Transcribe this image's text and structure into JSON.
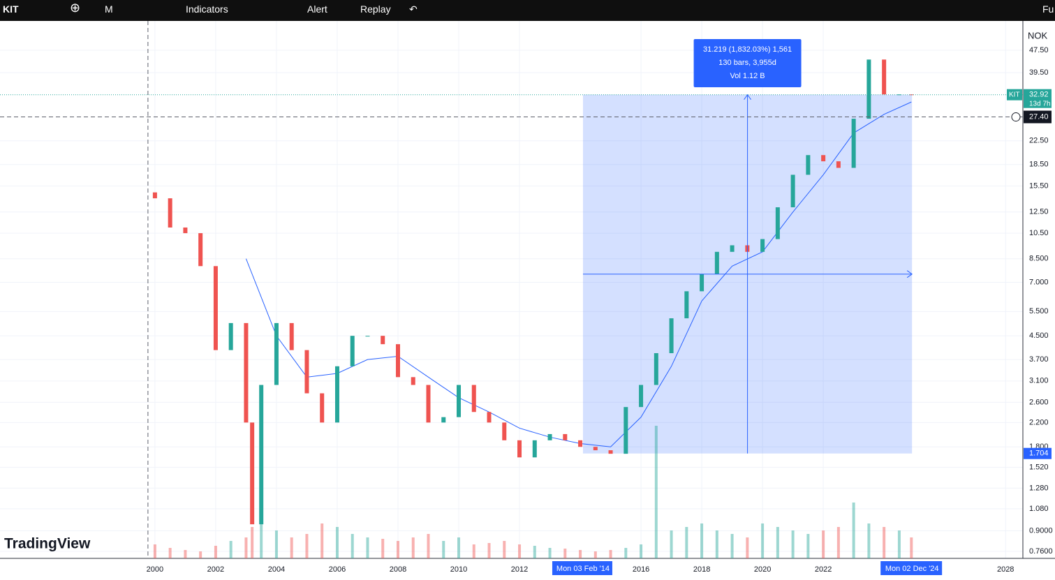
{
  "toolbar": {
    "symbol": "KIT",
    "interval": "M",
    "indicators": "Indicators",
    "alert": "Alert",
    "replay": "Replay",
    "fullscreen": "Fu"
  },
  "logo": "TradingView",
  "chart_data": {
    "type": "candlestick",
    "currency": "NOK",
    "log_scale": true,
    "grid": true,
    "up_color": "#26a69a",
    "down_color": "#ef5350",
    "xlim": [
      1994.9,
      2028.57
    ],
    "ylim": [
      0.717,
      58.8
    ],
    "x": [
      2000.0,
      2000.5,
      2001.0,
      2001.5,
      2002.0,
      2002.5,
      2003.0,
      2003.2,
      2003.5,
      2004.0,
      2004.5,
      2005.0,
      2005.5,
      2006.0,
      2006.5,
      2007.0,
      2007.5,
      2008.0,
      2008.5,
      2009.0,
      2009.5,
      2010.0,
      2010.5,
      2011.0,
      2011.5,
      2012.0,
      2012.5,
      2013.0,
      2013.5,
      2014.0,
      2014.5,
      2015.0,
      2015.5,
      2016.0,
      2016.5,
      2017.0,
      2017.5,
      2018.0,
      2018.5,
      2019.0,
      2019.5,
      2020.0,
      2020.5,
      2021.0,
      2021.5,
      2022.0,
      2022.5,
      2023.0,
      2023.5,
      2024.0,
      2024.5,
      2024.9
    ],
    "values": [
      14,
      11,
      10.5,
      8,
      4,
      5,
      2.2,
      0.95,
      3,
      5,
      4,
      2.8,
      2.2,
      3.5,
      4.5,
      4.5,
      4.2,
      3.2,
      3.0,
      2.2,
      2.3,
      3.0,
      2.4,
      2.2,
      1.9,
      1.65,
      1.9,
      2.0,
      1.9,
      1.8,
      1.75,
      1.7,
      2.5,
      3.0,
      3.9,
      5.2,
      6.5,
      7.5,
      9.0,
      9.5,
      9.0,
      10.0,
      13,
      17,
      20,
      19,
      18,
      27,
      44,
      33,
      33,
      32.92
    ],
    "volume": [
      20,
      15,
      12,
      10,
      18,
      25,
      30,
      45,
      60,
      40,
      30,
      35,
      50,
      45,
      35,
      30,
      28,
      25,
      30,
      35,
      25,
      30,
      20,
      22,
      25,
      20,
      18,
      15,
      14,
      12,
      10,
      12,
      15,
      20,
      190,
      40,
      45,
      50,
      40,
      35,
      30,
      50,
      45,
      40,
      35,
      40,
      45,
      80,
      50,
      45,
      40,
      30
    ],
    "moving_average": {
      "color": "#2962ff",
      "x": [
        2003,
        2004,
        2005,
        2006,
        2007,
        2008,
        2009,
        2010,
        2011,
        2012,
        2013,
        2014,
        2015,
        2016,
        2017,
        2018,
        2019,
        2020,
        2021,
        2022,
        2023,
        2024,
        2024.9
      ],
      "values": [
        8.5,
        4.5,
        3.2,
        3.3,
        3.7,
        3.8,
        3.2,
        2.7,
        2.4,
        2.1,
        1.95,
        1.85,
        1.8,
        2.3,
        3.5,
        6,
        8,
        9,
        12.5,
        17,
        24,
        28,
        31
      ]
    },
    "yticks": [
      {
        "value": 47.5,
        "label": "47.50"
      },
      {
        "value": 39.5,
        "label": "39.50"
      },
      {
        "value": 22.5,
        "label": "22.50"
      },
      {
        "value": 18.5,
        "label": "18.50"
      },
      {
        "value": 15.5,
        "label": "15.50"
      },
      {
        "value": 12.5,
        "label": "12.50"
      },
      {
        "value": 10.5,
        "label": "10.50"
      },
      {
        "value": 8.5,
        "label": "8.500"
      },
      {
        "value": 7,
        "label": "7.000"
      },
      {
        "value": 5.5,
        "label": "5.500"
      },
      {
        "value": 4.5,
        "label": "4.500"
      },
      {
        "value": 3.7,
        "label": "3.700"
      },
      {
        "value": 3.1,
        "label": "3.100"
      },
      {
        "value": 2.6,
        "label": "2.600"
      },
      {
        "value": 2.2,
        "label": "2.200"
      },
      {
        "value": 1.8,
        "label": "1.800"
      },
      {
        "value": 1.52,
        "label": "1.520"
      },
      {
        "value": 1.28,
        "label": "1.280"
      },
      {
        "value": 1.08,
        "label": "1.080"
      },
      {
        "value": 0.9,
        "label": "0.9000"
      },
      {
        "value": 0.76,
        "label": "0.7600"
      }
    ],
    "xticks": [
      2000,
      2002,
      2004,
      2006,
      2008,
      2010,
      2012,
      2016,
      2018,
      2020,
      2022,
      2028
    ],
    "last_price": {
      "symbol": "KIT",
      "value": 32.92,
      "countdown": "13d 7h"
    },
    "crosshair": {
      "x": 1999.77,
      "price": {
        "value": 27.4,
        "label": "27.40"
      }
    },
    "measure": {
      "start": 2014.09,
      "end": 2024.92,
      "low": 1.704,
      "high": 32.92,
      "lines": [
        "31.219 (1,832.03%) 1,561",
        "130 bars, 3,955d",
        "Vol 1.12 B"
      ],
      "start_label": "Mon 03 Feb '14",
      "end_label": "Mon 02 Dec '24"
    }
  }
}
